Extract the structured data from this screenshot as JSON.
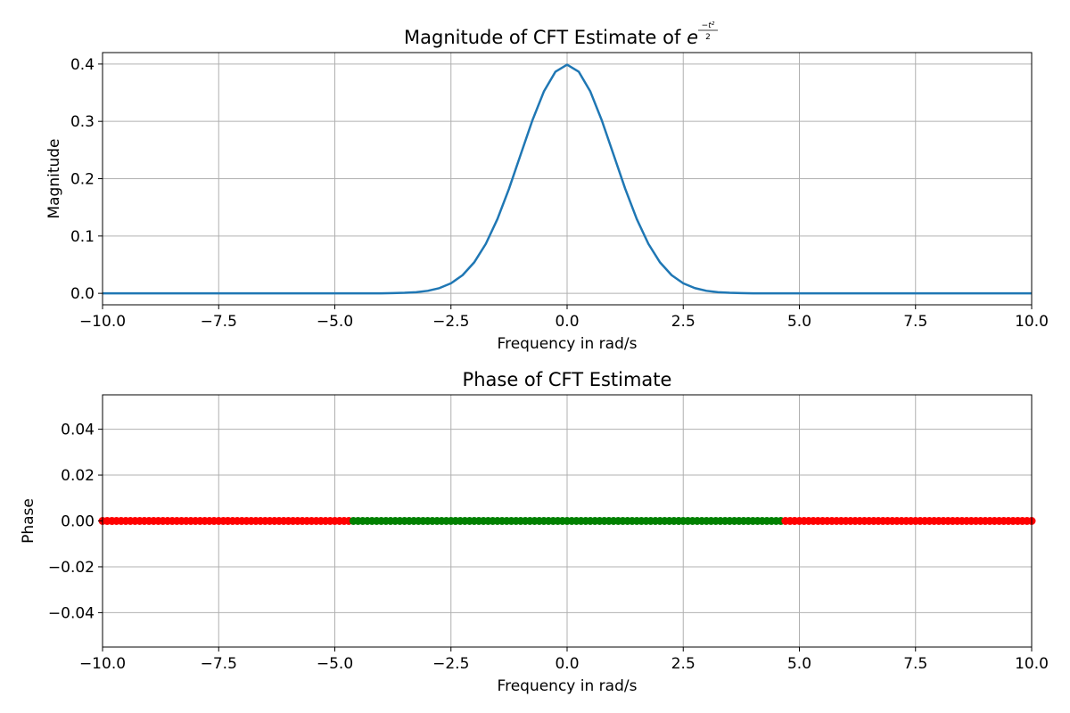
{
  "chart_data": [
    {
      "type": "line",
      "title": "Magnitude of CFT Estimate of ",
      "title_math": {
        "base": "e",
        "numerator": "−t²",
        "denominator": "2"
      },
      "xlabel": "Frequency in rad/s",
      "ylabel": "Magnitude",
      "xlim": [
        -10,
        10
      ],
      "ylim": [
        -0.02,
        0.42
      ],
      "xticks": [
        "−10.0",
        "−7.5",
        "−5.0",
        "−2.5",
        "0.0",
        "2.5",
        "5.0",
        "7.5",
        "10.0"
      ],
      "yticks": [
        "0.0",
        "0.1",
        "0.2",
        "0.3",
        "0.4"
      ],
      "grid": true,
      "series": [
        {
          "color": "#1f77b4",
          "x": [
            -10,
            -9,
            -8,
            -7,
            -6,
            -5,
            -4.5,
            -4,
            -3.75,
            -3.5,
            -3.25,
            -3,
            -2.75,
            -2.5,
            -2.25,
            -2,
            -1.75,
            -1.5,
            -1.25,
            -1,
            -0.75,
            -0.5,
            -0.25,
            0,
            0.25,
            0.5,
            0.75,
            1,
            1.25,
            1.5,
            1.75,
            2,
            2.25,
            2.5,
            2.75,
            3,
            3.25,
            3.5,
            3.75,
            4,
            4.5,
            5,
            6,
            7,
            8,
            9,
            10
          ],
          "y": [
            0,
            0,
            0,
            0,
            0,
            0,
            0,
            0.0001,
            0.0004,
            0.0009,
            0.002,
            0.0044,
            0.0091,
            0.0175,
            0.0317,
            0.054,
            0.0863,
            0.1295,
            0.1826,
            0.242,
            0.3011,
            0.3521,
            0.3867,
            0.3989,
            0.3867,
            0.3521,
            0.3011,
            0.242,
            0.1826,
            0.1295,
            0.0863,
            0.054,
            0.0317,
            0.0175,
            0.0091,
            0.0044,
            0.002,
            0.0009,
            0.0004,
            0.0001,
            0,
            0,
            0,
            0,
            0,
            0,
            0
          ]
        }
      ]
    },
    {
      "type": "scatter",
      "title": "Phase of CFT Estimate",
      "xlabel": "Frequency in rad/s",
      "ylabel": "Phase",
      "xlim": [
        -10,
        10
      ],
      "ylim": [
        -0.055,
        0.055
      ],
      "xticks": [
        "−10.0",
        "−7.5",
        "−5.0",
        "−2.5",
        "0.0",
        "2.5",
        "5.0",
        "7.5",
        "10.0"
      ],
      "yticks": [
        "−0.04",
        "−0.02",
        "0.00",
        "0.02",
        "0.04"
      ],
      "grid": true,
      "x_range": [
        -10,
        10
      ],
      "point_count": 201,
      "phase_value": 0,
      "green_interval": [
        -4.6,
        4.6
      ],
      "inner_color": "#008000",
      "outer_color": "#ff0000"
    }
  ]
}
